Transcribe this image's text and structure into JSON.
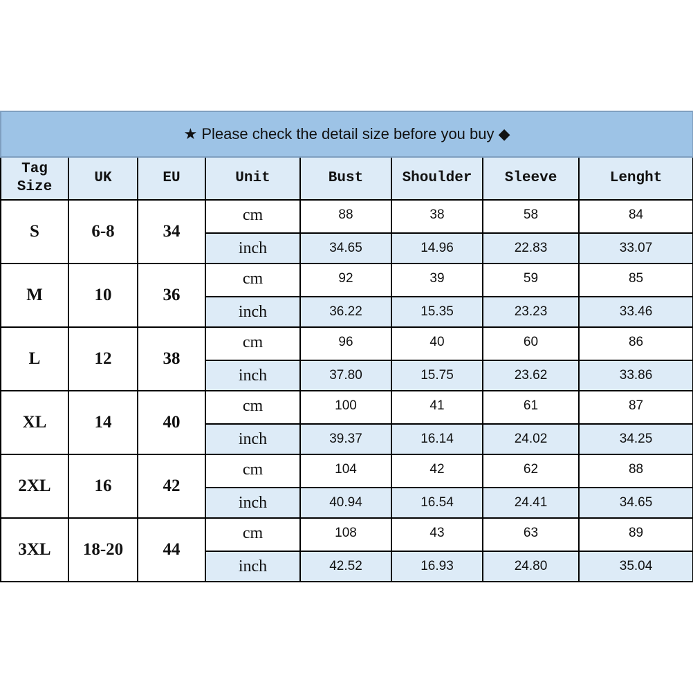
{
  "title": {
    "icon_left": "star-icon",
    "text": "Please check the detail size before you buy",
    "icon_right": "diamond-icon",
    "star": "★",
    "diamond": "◆"
  },
  "colors": {
    "title_bg": "#9dc3e6",
    "header_bg": "#ddebf7",
    "inch_row_bg": "#ddebf7",
    "border": "#000000"
  },
  "headers": [
    "Tag Size",
    "UK",
    "EU",
    "Unit",
    "Bust",
    "Shoulder",
    "Sleeve",
    "Lenght"
  ],
  "rows": [
    {
      "tag": "S",
      "uk": "6-8",
      "eu": "34",
      "cm": {
        "unit": "cm",
        "values": [
          "88",
          "38",
          "58",
          "84"
        ]
      },
      "inch": {
        "unit": "inch",
        "values": [
          "34.65",
          "14.96",
          "22.83",
          "33.07"
        ]
      }
    },
    {
      "tag": "M",
      "uk": "10",
      "eu": "36",
      "cm": {
        "unit": "cm",
        "values": [
          "92",
          "39",
          "59",
          "85"
        ]
      },
      "inch": {
        "unit": "inch",
        "values": [
          "36.22",
          "15.35",
          "23.23",
          "33.46"
        ]
      }
    },
    {
      "tag": "L",
      "uk": "12",
      "eu": "38",
      "cm": {
        "unit": "cm",
        "values": [
          "96",
          "40",
          "60",
          "86"
        ]
      },
      "inch": {
        "unit": "inch",
        "values": [
          "37.80",
          "15.75",
          "23.62",
          "33.86"
        ]
      }
    },
    {
      "tag": "XL",
      "uk": "14",
      "eu": "40",
      "cm": {
        "unit": "cm",
        "values": [
          "100",
          "41",
          "61",
          "87"
        ]
      },
      "inch": {
        "unit": "inch",
        "values": [
          "39.37",
          "16.14",
          "24.02",
          "34.25"
        ]
      }
    },
    {
      "tag": "2XL",
      "uk": "16",
      "eu": "42",
      "cm": {
        "unit": "cm",
        "values": [
          "104",
          "42",
          "62",
          "88"
        ]
      },
      "inch": {
        "unit": "inch",
        "values": [
          "40.94",
          "16.54",
          "24.41",
          "34.65"
        ]
      }
    },
    {
      "tag": "3XL",
      "uk": "18-20",
      "eu": "44",
      "cm": {
        "unit": "cm",
        "values": [
          "108",
          "43",
          "63",
          "89"
        ]
      },
      "inch": {
        "unit": "inch",
        "values": [
          "42.52",
          "16.93",
          "24.80",
          "35.04"
        ]
      }
    }
  ]
}
